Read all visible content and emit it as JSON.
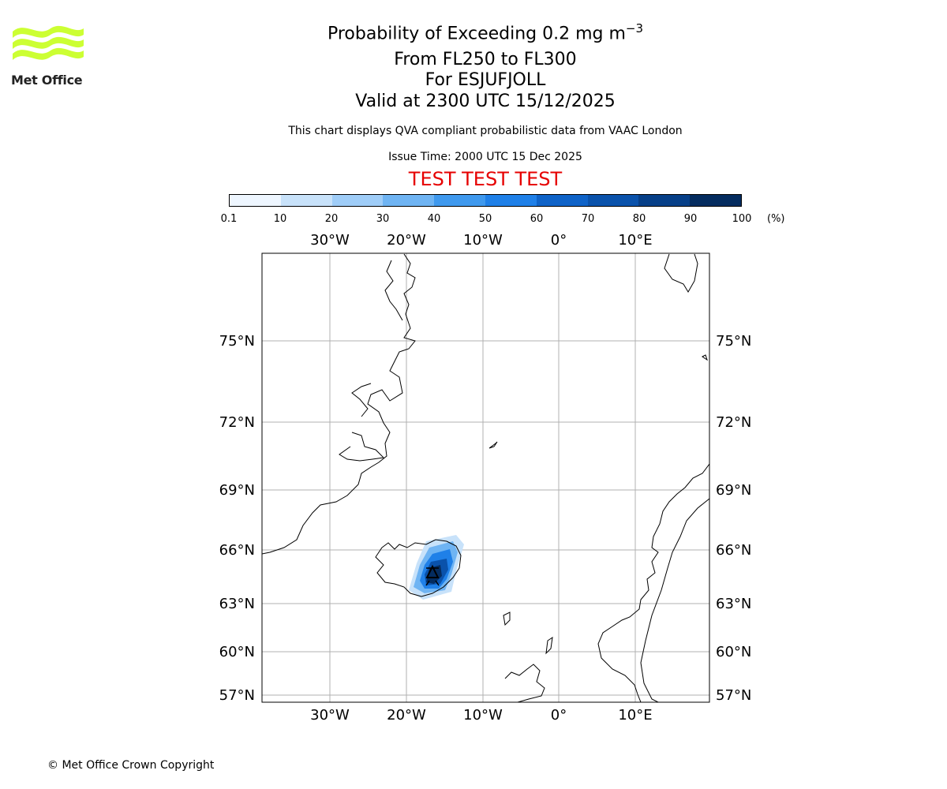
{
  "logo": {
    "text": "Met Office",
    "color": "#ccff33"
  },
  "title": {
    "main": "Probability of Exceeding 0.2 mg m",
    "main_exponent": "−3",
    "level": "From FL250 to FL300",
    "volcano": "For ESJUFJOLL",
    "valid": "Valid at 2300 UTC 15/12/2025",
    "description": "This chart displays QVA compliant probabilistic data from VAAC London",
    "issue_time": "Issue Time: 2000 UTC 15 Dec 2025",
    "test_banner": "TEST TEST TEST"
  },
  "colorbar": {
    "ticks": [
      "0.1",
      "10",
      "20",
      "30",
      "40",
      "50",
      "60",
      "70",
      "80",
      "90",
      "100"
    ],
    "colors": [
      "#eef6ff",
      "#c8e2fa",
      "#9fcdf8",
      "#6fb4f3",
      "#3f99ee",
      "#1f80e8",
      "#0f63c8",
      "#0a52ab",
      "#063f88",
      "#042c5f"
    ],
    "unit": "(%)"
  },
  "map": {
    "lon_labels": [
      "30°W",
      "20°W",
      "10°W",
      "0°",
      "10°E"
    ],
    "lat_labels": [
      "75°N",
      "72°N",
      "69°N",
      "66°N",
      "63°N",
      "60°N",
      "57°N"
    ],
    "volcano_marker": "triangle"
  },
  "footer": {
    "copyright": "© Met Office Crown Copyright"
  }
}
